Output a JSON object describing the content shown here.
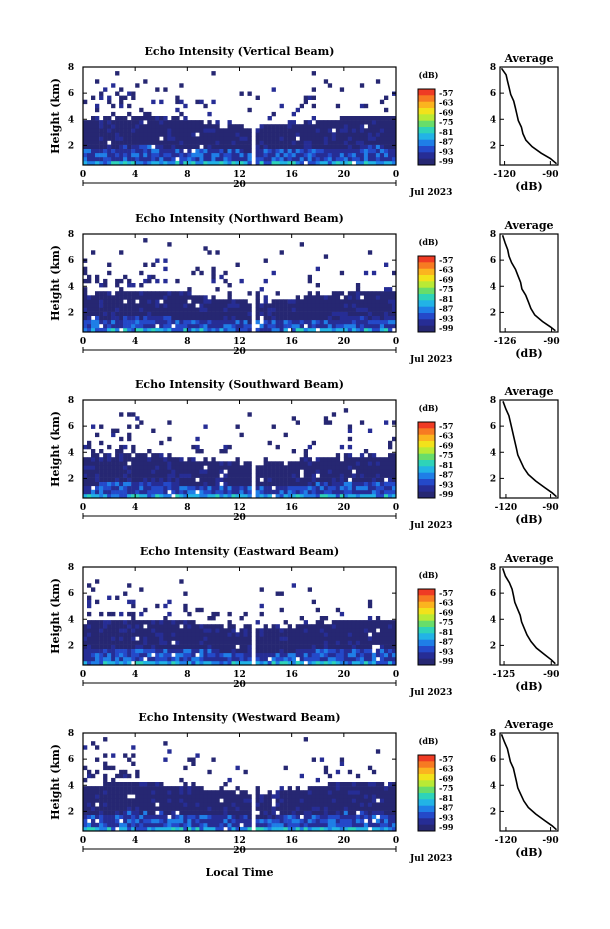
{
  "figure": {
    "xlabel": "Local Time",
    "date_label": "Jul 2023",
    "day_label": "20"
  },
  "colorbar": {
    "label": "(dB)",
    "ticks": [
      "-57",
      "-63",
      "-69",
      "-75",
      "-81",
      "-87",
      "-93",
      "-99"
    ],
    "colors": [
      "#ef3b24",
      "#f77a22",
      "#fbb41f",
      "#f2e21b",
      "#b9ea35",
      "#68dd6a",
      "#2ed3b9",
      "#22b3e6",
      "#1f7ee7",
      "#2449c9",
      "#262d95",
      "#262772"
    ]
  },
  "chart_data": [
    {
      "type": "heatmap",
      "title": "Echo Intensity (Vertical Beam)",
      "xlabel": "",
      "ylabel": "Height (km)",
      "x_ticks": [
        "0",
        "4",
        "8",
        "12",
        "16",
        "20",
        "0"
      ],
      "y_ticks": [
        "2",
        "4",
        "6",
        "8"
      ],
      "xlim": [
        0,
        24
      ],
      "ylim": [
        0.5,
        8
      ],
      "colorbar": {
        "label": "(dB)",
        "range": [
          -99,
          -57
        ]
      },
      "layer_top_km": 3.9,
      "average_profile": {
        "title": "Average",
        "xlabel": "(dB)",
        "x_ticks": [
          "-120",
          "-90"
        ],
        "xlim": [
          -123,
          -85
        ],
        "ylim": [
          0.5,
          8
        ],
        "height_km": [
          7.9,
          7.4,
          6.9,
          6.4,
          5.9,
          5.4,
          4.9,
          4.4,
          3.9,
          3.4,
          2.9,
          2.4,
          1.9,
          1.4,
          1.0,
          0.6
        ],
        "db": [
          -122,
          -119,
          -118,
          -117,
          -116,
          -114,
          -113,
          -112,
          -111,
          -109,
          -108,
          -106,
          -102,
          -96,
          -90,
          -86
        ]
      }
    },
    {
      "type": "heatmap",
      "title": "Echo Intensity (Northward Beam)",
      "xlabel": "",
      "ylabel": "Height (km)",
      "x_ticks": [
        "0",
        "4",
        "8",
        "12",
        "16",
        "20",
        "0"
      ],
      "y_ticks": [
        "2",
        "4",
        "6",
        "8"
      ],
      "xlim": [
        0,
        24
      ],
      "ylim": [
        0.5,
        8
      ],
      "colorbar": {
        "label": "(dB)",
        "range": [
          -99,
          -57
        ]
      },
      "layer_top_km": 3.3,
      "average_profile": {
        "title": "Average",
        "xlabel": "(dB)",
        "x_ticks": [
          "-126",
          "-90"
        ],
        "xlim": [
          -130,
          -85
        ],
        "ylim": [
          0.5,
          8
        ],
        "height_km": [
          7.9,
          7.3,
          6.8,
          6.3,
          5.8,
          5.3,
          4.8,
          4.3,
          3.8,
          3.3,
          2.8,
          2.3,
          1.8,
          1.3,
          0.9,
          0.6
        ],
        "db": [
          -128,
          -126,
          -124,
          -123,
          -121,
          -118,
          -116,
          -114,
          -113,
          -110,
          -108,
          -106,
          -103,
          -97,
          -91,
          -87
        ]
      }
    },
    {
      "type": "heatmap",
      "title": "Echo Intensity (Southward Beam)",
      "xlabel": "",
      "ylabel": "Height (km)",
      "x_ticks": [
        "0",
        "4",
        "8",
        "12",
        "16",
        "20",
        "0"
      ],
      "y_ticks": [
        "2",
        "4",
        "6",
        "8"
      ],
      "xlim": [
        0,
        24
      ],
      "ylim": [
        0.5,
        8
      ],
      "colorbar": {
        "label": "(dB)",
        "range": [
          -99,
          -57
        ]
      },
      "layer_top_km": 3.5,
      "average_profile": {
        "title": "Average",
        "xlabel": "(dB)",
        "x_ticks": [
          "-120",
          "-90"
        ],
        "xlim": [
          -124,
          -85
        ],
        "ylim": [
          0.5,
          8
        ],
        "height_km": [
          7.9,
          7.3,
          6.8,
          6.3,
          5.8,
          5.3,
          4.8,
          4.3,
          3.8,
          3.3,
          2.8,
          2.3,
          1.8,
          1.3,
          0.9,
          0.6
        ],
        "db": [
          -122,
          -120,
          -118,
          -117,
          -116,
          -115,
          -114,
          -113,
          -112,
          -110,
          -108,
          -105,
          -100,
          -94,
          -89,
          -86
        ]
      }
    },
    {
      "type": "heatmap",
      "title": "Echo Intensity (Eastward Beam)",
      "xlabel": "",
      "ylabel": "Height (km)",
      "x_ticks": [
        "0",
        "4",
        "8",
        "12",
        "16",
        "20",
        "0"
      ],
      "y_ticks": [
        "2",
        "4",
        "6",
        "8"
      ],
      "xlim": [
        0,
        24
      ],
      "ylim": [
        0.5,
        8
      ],
      "colorbar": {
        "label": "(dB)",
        "range": [
          -99,
          -57
        ]
      },
      "layer_top_km": 3.7,
      "average_profile": {
        "title": "Average",
        "xlabel": "(dB)",
        "x_ticks": [
          "-125",
          "-90"
        ],
        "xlim": [
          -128,
          -85
        ],
        "ylim": [
          0.5,
          8
        ],
        "height_km": [
          7.9,
          7.3,
          6.8,
          6.3,
          5.8,
          5.3,
          4.8,
          4.3,
          3.8,
          3.3,
          2.8,
          2.3,
          1.8,
          1.3,
          0.9,
          0.6
        ],
        "db": [
          -126,
          -124,
          -121,
          -119,
          -118,
          -117,
          -115,
          -113,
          -112,
          -110,
          -108,
          -105,
          -101,
          -95,
          -90,
          -87
        ]
      }
    },
    {
      "type": "heatmap",
      "title": "Echo Intensity (Westward Beam)",
      "xlabel": "Local Time",
      "ylabel": "Height (km)",
      "x_ticks": [
        "0",
        "4",
        "8",
        "12",
        "16",
        "20",
        "0"
      ],
      "y_ticks": [
        "2",
        "4",
        "6",
        "8"
      ],
      "xlim": [
        0,
        24
      ],
      "ylim": [
        0.5,
        8
      ],
      "colorbar": {
        "label": "(dB)",
        "range": [
          -99,
          -57
        ]
      },
      "layer_top_km": 3.9,
      "average_profile": {
        "title": "Average",
        "xlabel": "(dB)",
        "x_ticks": [
          "-120",
          "-90"
        ],
        "xlim": [
          -124,
          -85
        ],
        "ylim": [
          0.5,
          8
        ],
        "height_km": [
          7.9,
          7.3,
          6.8,
          6.3,
          5.8,
          5.3,
          4.8,
          4.3,
          3.8,
          3.3,
          2.8,
          2.3,
          1.8,
          1.3,
          0.9,
          0.6
        ],
        "db": [
          -123,
          -121,
          -119,
          -118,
          -117,
          -115,
          -114,
          -113,
          -112,
          -110,
          -108,
          -105,
          -100,
          -94,
          -89,
          -86
        ]
      }
    }
  ]
}
